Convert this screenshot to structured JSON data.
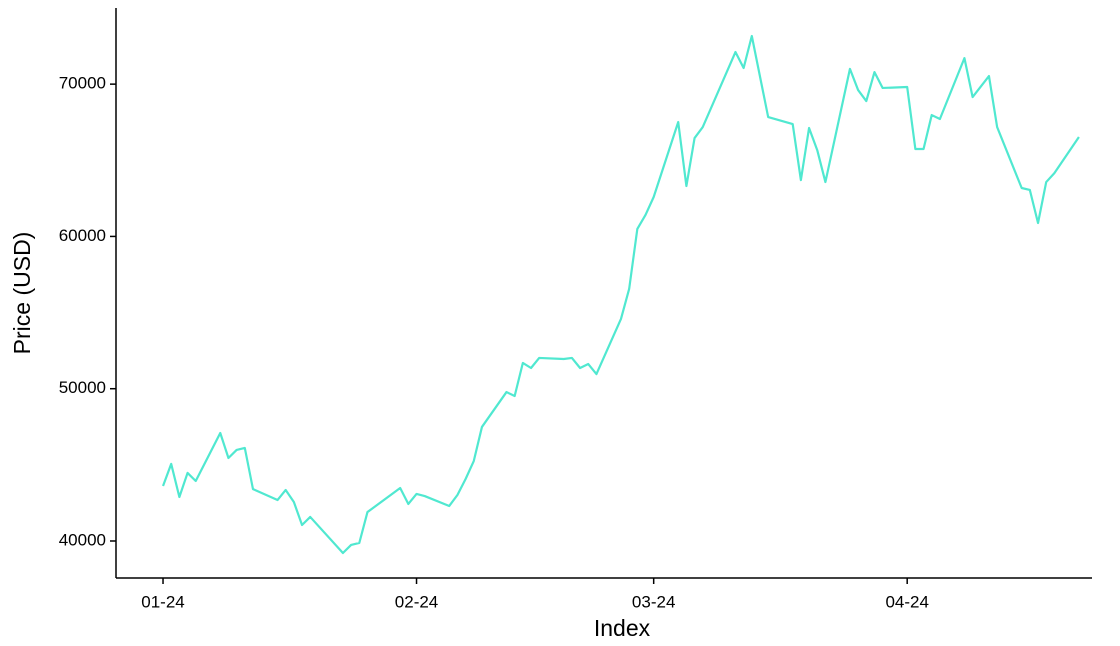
{
  "chart_data": {
    "type": "line",
    "xlabel": "Index",
    "ylabel": "Price (USD)",
    "x": [
      0,
      1,
      2,
      3,
      4,
      7,
      8,
      9,
      10,
      11,
      14,
      15,
      16,
      17,
      18,
      22,
      23,
      24,
      25,
      29,
      30,
      31,
      32,
      35,
      36,
      37,
      38,
      39,
      42,
      43,
      44,
      45,
      46,
      49,
      50,
      51,
      52,
      53,
      56,
      57,
      58,
      59,
      60,
      63,
      64,
      65,
      66,
      70,
      71,
      72,
      74,
      77,
      78,
      79,
      80,
      81,
      84,
      85,
      86,
      87,
      88,
      91,
      92,
      93,
      94,
      95,
      98,
      99,
      101,
      102,
      105,
      106,
      107,
      108,
      109,
      112
    ],
    "series": [
      {
        "name": "Price",
        "color": "#50E8D0",
        "values": [
          43610,
          45060,
          42890,
          44470,
          43940,
          47090,
          45450,
          45980,
          46110,
          43410,
          42690,
          43350,
          42560,
          41050,
          41580,
          39210,
          39740,
          39870,
          41900,
          43480,
          42430,
          43090,
          42950,
          42300,
          43020,
          44070,
          45250,
          47490,
          49780,
          49520,
          51690,
          51360,
          52020,
          51950,
          52020,
          51360,
          51620,
          50960,
          54580,
          56550,
          60490,
          61410,
          62590,
          67510,
          63310,
          66460,
          67180,
          72110,
          71060,
          73160,
          67840,
          67380,
          63700,
          67120,
          65670,
          63570,
          71000,
          69610,
          68890,
          70790,
          69750,
          69810,
          65740,
          65740,
          67970,
          67710,
          71710,
          69150,
          70530,
          67180,
          63180,
          63050,
          60880,
          63570,
          64160,
          66530
        ]
      }
    ],
    "xlim": [
      -5.75,
      113.6
    ],
    "xticks": [
      {
        "value": 0,
        "label": "01-24"
      },
      {
        "value": 31,
        "label": "02-24"
      },
      {
        "value": 60,
        "label": "03-24"
      },
      {
        "value": 91,
        "label": "04-24"
      }
    ],
    "ylim": [
      37570,
      75000
    ],
    "yticks": [
      40000,
      50000,
      60000,
      70000
    ],
    "grid": false
  }
}
